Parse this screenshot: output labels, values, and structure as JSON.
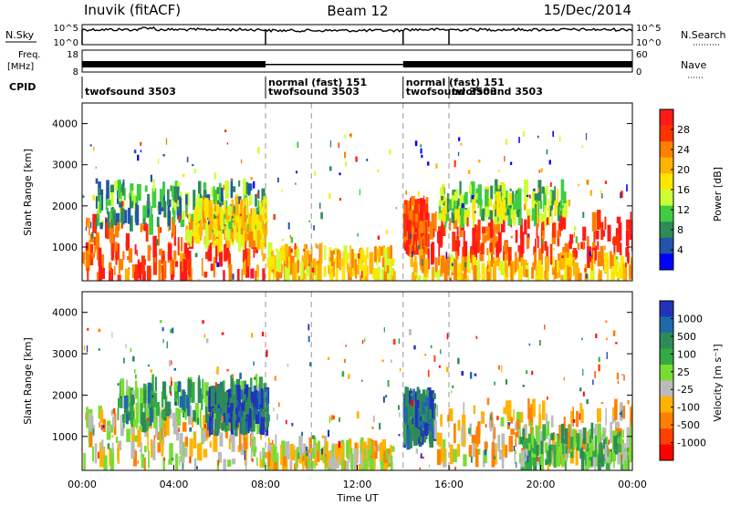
{
  "header": {
    "station": "Inuvik (fitACF)",
    "beam": "Beam 12",
    "date": "15/Dec/2014"
  },
  "noise_panel": {
    "left_label": "N.Sky",
    "left_ticks": [
      "10^5",
      "10^0"
    ],
    "right_label": "N.Search",
    "right_ticks": [
      "10^5",
      "10^0"
    ]
  },
  "freq_panel": {
    "left_label_top": "Freq.",
    "left_label_unit": "[MHz]",
    "left_ticks": [
      "18",
      "8"
    ],
    "right_label": "Nave",
    "right_ticks": [
      "60",
      "0"
    ]
  },
  "cpid": {
    "label": "CPID",
    "segments": [
      {
        "start_hour": 0,
        "end_hour": 8,
        "text": "twofsound 3503"
      },
      {
        "start_hour": 8,
        "end_hour": 14,
        "text": "normal (fast) 151"
      },
      {
        "start_hour": 8,
        "end_hour": 14,
        "text": "twofsound 3503"
      },
      {
        "start_hour": 14,
        "end_hour": 16,
        "text": "normal (fast) 151"
      },
      {
        "start_hour": 14,
        "end_hour": 16,
        "text": "twofsound 3503"
      },
      {
        "start_hour": 16,
        "end_hour": 24,
        "text": "twofsound 3503"
      }
    ]
  },
  "chart_data": [
    {
      "type": "heatmap",
      "name": "power",
      "ylabel": "Slant Range [km]",
      "yticks": [
        1000,
        2000,
        3000,
        4000
      ],
      "ylim": [
        180,
        4500
      ],
      "xlim": [
        0,
        24
      ],
      "colorbar": {
        "label": "Power [dB]",
        "ticks": [
          "28",
          "24",
          "20",
          "16",
          "12",
          "8",
          "4"
        ],
        "colors": [
          "#ff1a1a",
          "#ff3300",
          "#ff8000",
          "#ffb300",
          "#ffe600",
          "#ccff33",
          "#40cc40",
          "#2e8b57",
          "#2255aa",
          "#0000ff"
        ],
        "range": [
          0,
          32
        ]
      },
      "echo_regions": [
        {
          "x0": 0.0,
          "x1": 8.0,
          "r0": 200,
          "r1": 1600,
          "value": 27
        },
        {
          "x0": 0.5,
          "x1": 8.0,
          "r0": 1500,
          "r1": 2500,
          "value": 10
        },
        {
          "x0": 4.5,
          "x1": 8.0,
          "r0": 1100,
          "r1": 2000,
          "value": 18
        },
        {
          "x0": 8.0,
          "x1": 13.5,
          "r0": 200,
          "r1": 900,
          "value": 20
        },
        {
          "x0": 14.0,
          "x1": 15.0,
          "r0": 900,
          "r1": 2000,
          "value": 28
        },
        {
          "x0": 15.0,
          "x1": 24.0,
          "r0": 700,
          "r1": 1700,
          "value": 28
        },
        {
          "x0": 14.2,
          "x1": 24.0,
          "r0": 200,
          "r1": 700,
          "value": 20
        },
        {
          "x0": 15.5,
          "x1": 21.0,
          "r0": 1700,
          "r1": 2400,
          "value": 12
        }
      ]
    },
    {
      "type": "heatmap",
      "name": "velocity",
      "ylabel": "Slant Range [km]",
      "yticks": [
        1000,
        2000,
        3000,
        4000
      ],
      "ylim": [
        180,
        4500
      ],
      "xlim": [
        0,
        24
      ],
      "xticks": [
        "00:00",
        "04:00",
        "08:00",
        "12:00",
        "16:00",
        "20:00",
        "00:00"
      ],
      "xlabel": "Time UT",
      "colorbar": {
        "label": "Velocity [m s⁻¹]",
        "ticks": [
          "1000",
          "500",
          "100",
          "25",
          "-25",
          "-100",
          "-500",
          "-1000"
        ],
        "colors": [
          "#2233bb",
          "#1e6aa8",
          "#2e8b57",
          "#33aa44",
          "#77dd33",
          "#bbbbbb",
          "#ffb300",
          "#ff8000",
          "#ff4000",
          "#ff0000"
        ],
        "range": [
          -1200,
          1200
        ]
      },
      "echo_regions": [
        {
          "x0": 0.0,
          "x1": 8.0,
          "r0": 300,
          "r1": 1600,
          "value": -200
        },
        {
          "x0": 1.5,
          "x1": 8.0,
          "r0": 1300,
          "r1": 2300,
          "value": 400
        },
        {
          "x0": 5.5,
          "x1": 8.0,
          "r0": 1200,
          "r1": 2100,
          "value": 900
        },
        {
          "x0": 8.0,
          "x1": 13.5,
          "r0": 200,
          "r1": 800,
          "value": -200
        },
        {
          "x0": 14.0,
          "x1": 15.3,
          "r0": 900,
          "r1": 2000,
          "value": 800
        },
        {
          "x0": 15.3,
          "x1": 24.0,
          "r0": 400,
          "r1": 1700,
          "value": -300
        },
        {
          "x0": 19.0,
          "x1": 24.0,
          "r0": 300,
          "r1": 1100,
          "value": 300
        }
      ]
    }
  ]
}
